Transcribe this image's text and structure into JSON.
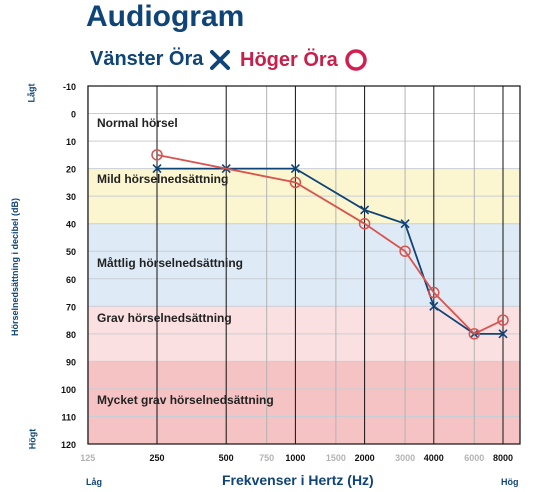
{
  "title": "Audiogram",
  "legend": {
    "left_label": "Vänster Öra",
    "right_label": "Höger Öra",
    "left_color": "#0f4478",
    "right_color": "#d9534f"
  },
  "axis": {
    "y_label": "Hörselnedsättning i decibel (dB)",
    "y_top_edge": "Lågt",
    "y_bottom_edge": "Högt",
    "x_label": "Frekvenser i Hertz (Hz)",
    "x_left_edge": "Låg",
    "x_right_edge": "Hög"
  },
  "chart_data": {
    "type": "line",
    "title": "Audiogram",
    "xlabel": "Frekvenser i Hertz (Hz)",
    "ylabel": "Hörselnedsättning i decibel (dB)",
    "x_scale": "log2",
    "x_ticks": [
      {
        "value": 125,
        "label": "125",
        "bold": false
      },
      {
        "value": 250,
        "label": "250",
        "bold": true
      },
      {
        "value": 500,
        "label": "500",
        "bold": true
      },
      {
        "value": 750,
        "label": "750",
        "bold": false
      },
      {
        "value": 1000,
        "label": "1000",
        "bold": true
      },
      {
        "value": 1500,
        "label": "1500",
        "bold": false
      },
      {
        "value": 2000,
        "label": "2000",
        "bold": true
      },
      {
        "value": 3000,
        "label": "3000",
        "bold": false
      },
      {
        "value": 4000,
        "label": "4000",
        "bold": true
      },
      {
        "value": 6000,
        "label": "6000",
        "bold": false
      },
      {
        "value": 8000,
        "label": "8000",
        "bold": true
      }
    ],
    "y_ticks": [
      -10,
      0,
      10,
      20,
      30,
      40,
      50,
      60,
      70,
      80,
      90,
      100,
      110,
      120
    ],
    "ylim": [
      -10,
      120
    ],
    "y_inverted": true,
    "grid": true,
    "bands": [
      {
        "from": -10,
        "to": 20,
        "label": "Normal hörsel",
        "color": "#ffffff"
      },
      {
        "from": 20,
        "to": 40,
        "label": "Mild hörselnedsättning",
        "color": "#fbf6d0"
      },
      {
        "from": 40,
        "to": 70,
        "label": "Måttlig hörselnedsättning",
        "color": "#deebf7"
      },
      {
        "from": 70,
        "to": 90,
        "label": "Grav hörselnedsättning",
        "color": "#fbe0e1"
      },
      {
        "from": 90,
        "to": 120,
        "label": "Mycket grav hörselnedsättning",
        "color": "#f6c3c4"
      }
    ],
    "series": [
      {
        "name": "Vänster Öra",
        "marker": "x",
        "color": "#0f4478",
        "x": [
          250,
          500,
          1000,
          2000,
          3000,
          4000,
          6000,
          8000
        ],
        "y": [
          20,
          20,
          20,
          35,
          40,
          70,
          80,
          80
        ]
      },
      {
        "name": "Höger Öra",
        "marker": "o",
        "color": "#d9534f",
        "x": [
          250,
          1000,
          2000,
          3000,
          4000,
          6000,
          8000
        ],
        "y": [
          15,
          25,
          40,
          50,
          65,
          80,
          75
        ]
      }
    ]
  }
}
